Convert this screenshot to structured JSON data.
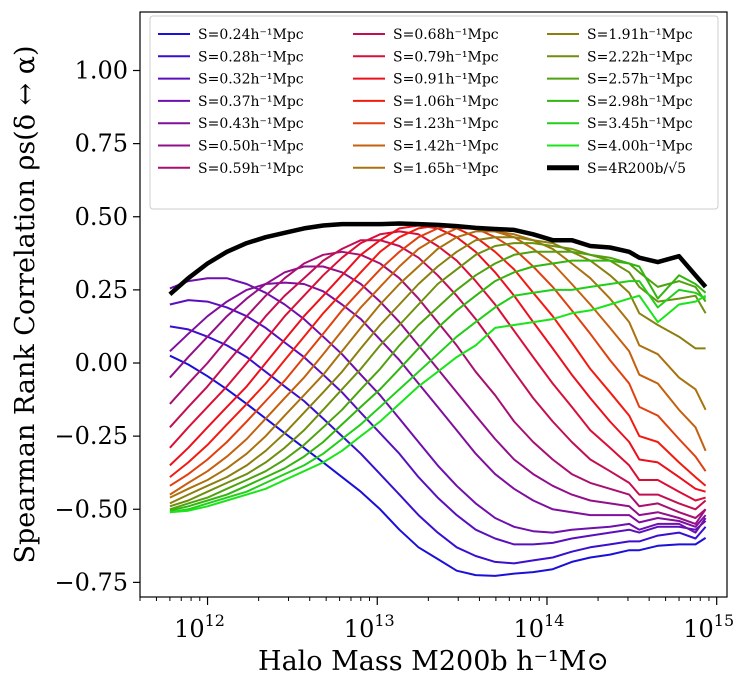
{
  "chart_data": {
    "type": "line",
    "title": "",
    "xlabel": "Halo Mass M200b h⁻¹M⊙",
    "ylabel": "Spearman Rank Correlation ρs(δ ↔ α)",
    "xscale": "log",
    "xlim": [
      400000000000.0,
      1150000000000000.0
    ],
    "ylim": [
      -0.8,
      1.2
    ],
    "xticks": [
      1000000000000.0,
      10000000000000.0,
      100000000000000.0,
      1000000000000000.0
    ],
    "xtick_labels": [
      "10^12",
      "10^13",
      "10^14",
      "10^15"
    ],
    "yticks": [
      1.0,
      0.75,
      0.5,
      0.25,
      0.0,
      -0.25,
      -0.5,
      -0.75
    ],
    "ytick_labels": [
      "1.00",
      "0.75",
      "0.50",
      "0.25",
      "0.00",
      "−0.25",
      "−0.50",
      "−0.75"
    ],
    "grid": false,
    "legend_position": "top",
    "legend_columns": 3,
    "x": [
      600000000000.0,
      770000000000.0,
      1000000000000.0,
      1300000000000.0,
      1700000000000.0,
      2200000000000.0,
      2850000000000.0,
      3700000000000.0,
      4800000000000.0,
      6200000000000.0,
      8000000000000.0,
      10400000000000.0,
      13500000000000.0,
      17500000000000.0,
      22700000000000.0,
      29400000000000.0,
      38000000000000.0,
      49500000000000.0,
      64000000000000.0,
      83000000000000.0,
      108000000000000.0,
      140000000000000.0,
      180000000000000.0,
      235000000000000.0,
      305000000000000.0,
      350000000000000.0,
      450000000000000.0,
      600000000000000.0,
      750000000000000.0,
      860000000000000.0
    ],
    "series": [
      {
        "name": "S=0.24h⁻¹Mpc",
        "color": "#1a10d9",
        "values": [
          0.025,
          -0.005,
          -0.045,
          -0.09,
          -0.14,
          -0.19,
          -0.24,
          -0.29,
          -0.34,
          -0.39,
          -0.44,
          -0.5,
          -0.57,
          -0.63,
          -0.67,
          -0.71,
          -0.725,
          -0.728,
          -0.72,
          -0.715,
          -0.705,
          -0.68,
          -0.665,
          -0.655,
          -0.64,
          -0.64,
          -0.625,
          -0.62,
          -0.62,
          -0.598
        ]
      },
      {
        "name": "S=0.28h⁻¹Mpc",
        "color": "#3a0fcf",
        "values": [
          0.125,
          0.115,
          0.09,
          0.06,
          0.02,
          -0.03,
          -0.08,
          -0.13,
          -0.19,
          -0.25,
          -0.31,
          -0.38,
          -0.45,
          -0.52,
          -0.58,
          -0.63,
          -0.66,
          -0.68,
          -0.685,
          -0.675,
          -0.665,
          -0.645,
          -0.63,
          -0.62,
          -0.61,
          -0.61,
          -0.59,
          -0.58,
          -0.6,
          -0.56
        ]
      },
      {
        "name": "S=0.32h⁻¹Mpc",
        "color": "#5a0fbf",
        "values": [
          0.2,
          0.215,
          0.21,
          0.19,
          0.16,
          0.12,
          0.07,
          0.02,
          -0.04,
          -0.1,
          -0.17,
          -0.24,
          -0.31,
          -0.39,
          -0.46,
          -0.52,
          -0.57,
          -0.6,
          -0.62,
          -0.62,
          -0.615,
          -0.6,
          -0.59,
          -0.58,
          -0.57,
          -0.58,
          -0.56,
          -0.56,
          -0.57,
          -0.54
        ]
      },
      {
        "name": "S=0.37h⁻¹Mpc",
        "color": "#6e0fae",
        "values": [
          0.255,
          0.28,
          0.29,
          0.29,
          0.27,
          0.24,
          0.2,
          0.15,
          0.09,
          0.03,
          -0.04,
          -0.11,
          -0.19,
          -0.27,
          -0.35,
          -0.42,
          -0.48,
          -0.53,
          -0.56,
          -0.575,
          -0.58,
          -0.57,
          -0.565,
          -0.56,
          -0.55,
          -0.57,
          -0.55,
          -0.55,
          -0.58,
          -0.53
        ]
      },
      {
        "name": "S=0.43h⁻¹Mpc",
        "color": "#800f9e",
        "values": [
          0.04,
          0.1,
          0.16,
          0.21,
          0.25,
          0.27,
          0.275,
          0.27,
          0.245,
          0.2,
          0.15,
          0.08,
          0.01,
          -0.07,
          -0.15,
          -0.23,
          -0.31,
          -0.38,
          -0.43,
          -0.47,
          -0.5,
          -0.51,
          -0.52,
          -0.52,
          -0.52,
          -0.545,
          -0.53,
          -0.54,
          -0.56,
          -0.52
        ]
      },
      {
        "name": "S=0.50h⁻¹Mpc",
        "color": "#920f8a",
        "values": [
          -0.05,
          0.02,
          0.09,
          0.16,
          0.22,
          0.27,
          0.31,
          0.33,
          0.33,
          0.31,
          0.27,
          0.21,
          0.14,
          0.06,
          -0.02,
          -0.1,
          -0.18,
          -0.26,
          -0.33,
          -0.38,
          -0.42,
          -0.45,
          -0.47,
          -0.48,
          -0.49,
          -0.52,
          -0.51,
          -0.53,
          -0.55,
          -0.5
        ]
      },
      {
        "name": "S=0.59h⁻¹Mpc",
        "color": "#a80f70",
        "values": [
          -0.14,
          -0.07,
          0.0,
          0.08,
          0.16,
          0.23,
          0.29,
          0.34,
          0.37,
          0.38,
          0.37,
          0.34,
          0.29,
          0.22,
          0.14,
          0.06,
          -0.03,
          -0.11,
          -0.2,
          -0.27,
          -0.33,
          -0.38,
          -0.41,
          -0.43,
          -0.45,
          -0.49,
          -0.48,
          -0.51,
          -0.53,
          -0.5
        ]
      },
      {
        "name": "S=0.68h⁻¹Mpc",
        "color": "#c30f52",
        "values": [
          -0.22,
          -0.15,
          -0.08,
          0.0,
          0.08,
          0.16,
          0.23,
          0.29,
          0.35,
          0.39,
          0.42,
          0.42,
          0.4,
          0.36,
          0.3,
          0.23,
          0.15,
          0.06,
          -0.03,
          -0.12,
          -0.2,
          -0.27,
          -0.33,
          -0.37,
          -0.41,
          -0.45,
          -0.45,
          -0.48,
          -0.5,
          -0.47
        ]
      },
      {
        "name": "S=0.79h⁻¹Mpc",
        "color": "#d90f38",
        "values": [
          -0.29,
          -0.22,
          -0.15,
          -0.08,
          0.0,
          0.08,
          0.16,
          0.23,
          0.3,
          0.36,
          0.41,
          0.44,
          0.45,
          0.44,
          0.4,
          0.35,
          0.28,
          0.2,
          0.11,
          0.02,
          -0.07,
          -0.15,
          -0.23,
          -0.29,
          -0.35,
          -0.4,
          -0.4,
          -0.44,
          -0.47,
          -0.46
        ]
      },
      {
        "name": "S=0.91h⁻¹Mpc",
        "color": "#ec0f1c",
        "values": [
          -0.35,
          -0.29,
          -0.22,
          -0.15,
          -0.08,
          0.0,
          0.08,
          0.16,
          0.23,
          0.3,
          0.37,
          0.42,
          0.46,
          0.47,
          0.46,
          0.43,
          0.38,
          0.31,
          0.23,
          0.14,
          0.05,
          -0.04,
          -0.12,
          -0.2,
          -0.27,
          -0.33,
          -0.34,
          -0.39,
          -0.43,
          -0.44
        ]
      },
      {
        "name": "S=1.06h⁻¹Mpc",
        "color": "#f21b10",
        "values": [
          -0.39,
          -0.34,
          -0.28,
          -0.21,
          -0.14,
          -0.07,
          0.01,
          0.09,
          0.17,
          0.24,
          0.31,
          0.38,
          0.43,
          0.46,
          0.47,
          0.46,
          0.43,
          0.38,
          0.32,
          0.24,
          0.16,
          0.07,
          -0.02,
          -0.1,
          -0.18,
          -0.25,
          -0.27,
          -0.34,
          -0.39,
          -0.42
        ]
      },
      {
        "name": "S=1.23h⁻¹Mpc",
        "color": "#e0400f",
        "values": [
          -0.42,
          -0.38,
          -0.33,
          -0.27,
          -0.2,
          -0.13,
          -0.06,
          0.02,
          0.1,
          0.18,
          0.25,
          0.32,
          0.38,
          0.43,
          0.46,
          0.47,
          0.46,
          0.43,
          0.39,
          0.33,
          0.26,
          0.18,
          0.1,
          0.01,
          -0.07,
          -0.15,
          -0.18,
          -0.26,
          -0.32,
          -0.37
        ]
      },
      {
        "name": "S=1.42h⁻¹Mpc",
        "color": "#c5600f",
        "values": [
          -0.45,
          -0.41,
          -0.37,
          -0.32,
          -0.26,
          -0.19,
          -0.12,
          -0.05,
          0.03,
          0.11,
          0.19,
          0.26,
          0.33,
          0.39,
          0.43,
          0.46,
          0.46,
          0.45,
          0.43,
          0.39,
          0.34,
          0.27,
          0.2,
          0.12,
          0.04,
          -0.04,
          -0.07,
          -0.16,
          -0.22,
          -0.3
        ]
      },
      {
        "name": "S=1.65h⁻¹Mpc",
        "color": "#a9720f",
        "values": [
          -0.46,
          -0.43,
          -0.4,
          -0.36,
          -0.31,
          -0.25,
          -0.18,
          -0.11,
          -0.04,
          0.04,
          0.12,
          0.2,
          0.27,
          0.33,
          0.39,
          0.43,
          0.45,
          0.45,
          0.44,
          0.42,
          0.39,
          0.34,
          0.29,
          0.22,
          0.14,
          0.06,
          0.03,
          -0.05,
          -0.09,
          -0.16
        ]
      },
      {
        "name": "S=1.91h⁻¹Mpc",
        "color": "#8c7f0f",
        "values": [
          -0.48,
          -0.45,
          -0.42,
          -0.39,
          -0.35,
          -0.3,
          -0.24,
          -0.17,
          -0.1,
          -0.03,
          0.05,
          0.13,
          0.2,
          0.27,
          0.33,
          0.38,
          0.42,
          0.43,
          0.43,
          0.42,
          0.41,
          0.38,
          0.35,
          0.3,
          0.24,
          0.17,
          0.13,
          0.09,
          0.05,
          0.05
        ]
      },
      {
        "name": "S=2.22h⁻¹Mpc",
        "color": "#6f8f0f",
        "values": [
          -0.49,
          -0.47,
          -0.44,
          -0.41,
          -0.38,
          -0.34,
          -0.29,
          -0.23,
          -0.16,
          -0.09,
          -0.02,
          0.06,
          0.13,
          0.2,
          0.27,
          0.32,
          0.37,
          0.4,
          0.41,
          0.41,
          0.4,
          0.39,
          0.37,
          0.35,
          0.31,
          0.26,
          0.21,
          0.22,
          0.23,
          0.17
        ]
      },
      {
        "name": "S=2.57h⁻¹Mpc",
        "color": "#50a10f",
        "values": [
          -0.5,
          -0.48,
          -0.46,
          -0.43,
          -0.4,
          -0.37,
          -0.33,
          -0.28,
          -0.22,
          -0.16,
          -0.09,
          -0.02,
          0.06,
          0.13,
          0.19,
          0.25,
          0.3,
          0.34,
          0.37,
          0.38,
          0.38,
          0.38,
          0.37,
          0.36,
          0.34,
          0.31,
          0.26,
          0.28,
          0.26,
          0.21
        ]
      },
      {
        "name": "S=2.98h⁻¹Mpc",
        "color": "#33b50f",
        "values": [
          -0.505,
          -0.49,
          -0.47,
          -0.45,
          -0.42,
          -0.39,
          -0.36,
          -0.32,
          -0.27,
          -0.21,
          -0.15,
          -0.09,
          -0.02,
          0.05,
          0.12,
          0.18,
          0.23,
          0.28,
          0.31,
          0.33,
          0.34,
          0.35,
          0.35,
          0.35,
          0.34,
          0.33,
          0.22,
          0.3,
          0.27,
          0.24
        ]
      },
      {
        "name": "S=3.45h⁻¹Mpc",
        "color": "#21cf1a",
        "values": [
          -0.51,
          -0.5,
          -0.48,
          -0.46,
          -0.44,
          -0.41,
          -0.38,
          -0.35,
          -0.31,
          -0.26,
          -0.21,
          -0.15,
          -0.09,
          -0.03,
          0.03,
          0.09,
          0.14,
          0.19,
          0.23,
          0.24,
          0.25,
          0.25,
          0.26,
          0.27,
          0.28,
          0.28,
          0.19,
          0.25,
          0.24,
          0.22
        ]
      },
      {
        "name": "S=4.00h⁻¹Mpc",
        "color": "#1ae51a",
        "values": [
          -0.51,
          -0.505,
          -0.49,
          -0.47,
          -0.45,
          -0.43,
          -0.4,
          -0.37,
          -0.34,
          -0.3,
          -0.25,
          -0.2,
          -0.14,
          -0.08,
          -0.03,
          0.02,
          0.06,
          0.12,
          0.13,
          0.14,
          0.15,
          0.17,
          0.18,
          0.2,
          0.22,
          0.23,
          0.14,
          0.2,
          0.21,
          0.23
        ]
      },
      {
        "name": "S=4R200b/√5",
        "color": "#000000",
        "bold": true,
        "values": [
          0.235,
          0.29,
          0.34,
          0.38,
          0.41,
          0.43,
          0.445,
          0.46,
          0.47,
          0.475,
          0.475,
          0.475,
          0.477,
          0.475,
          0.472,
          0.468,
          0.462,
          0.458,
          0.455,
          0.44,
          0.42,
          0.42,
          0.4,
          0.395,
          0.38,
          0.36,
          0.345,
          0.365,
          0.3,
          0.26
        ]
      }
    ]
  }
}
